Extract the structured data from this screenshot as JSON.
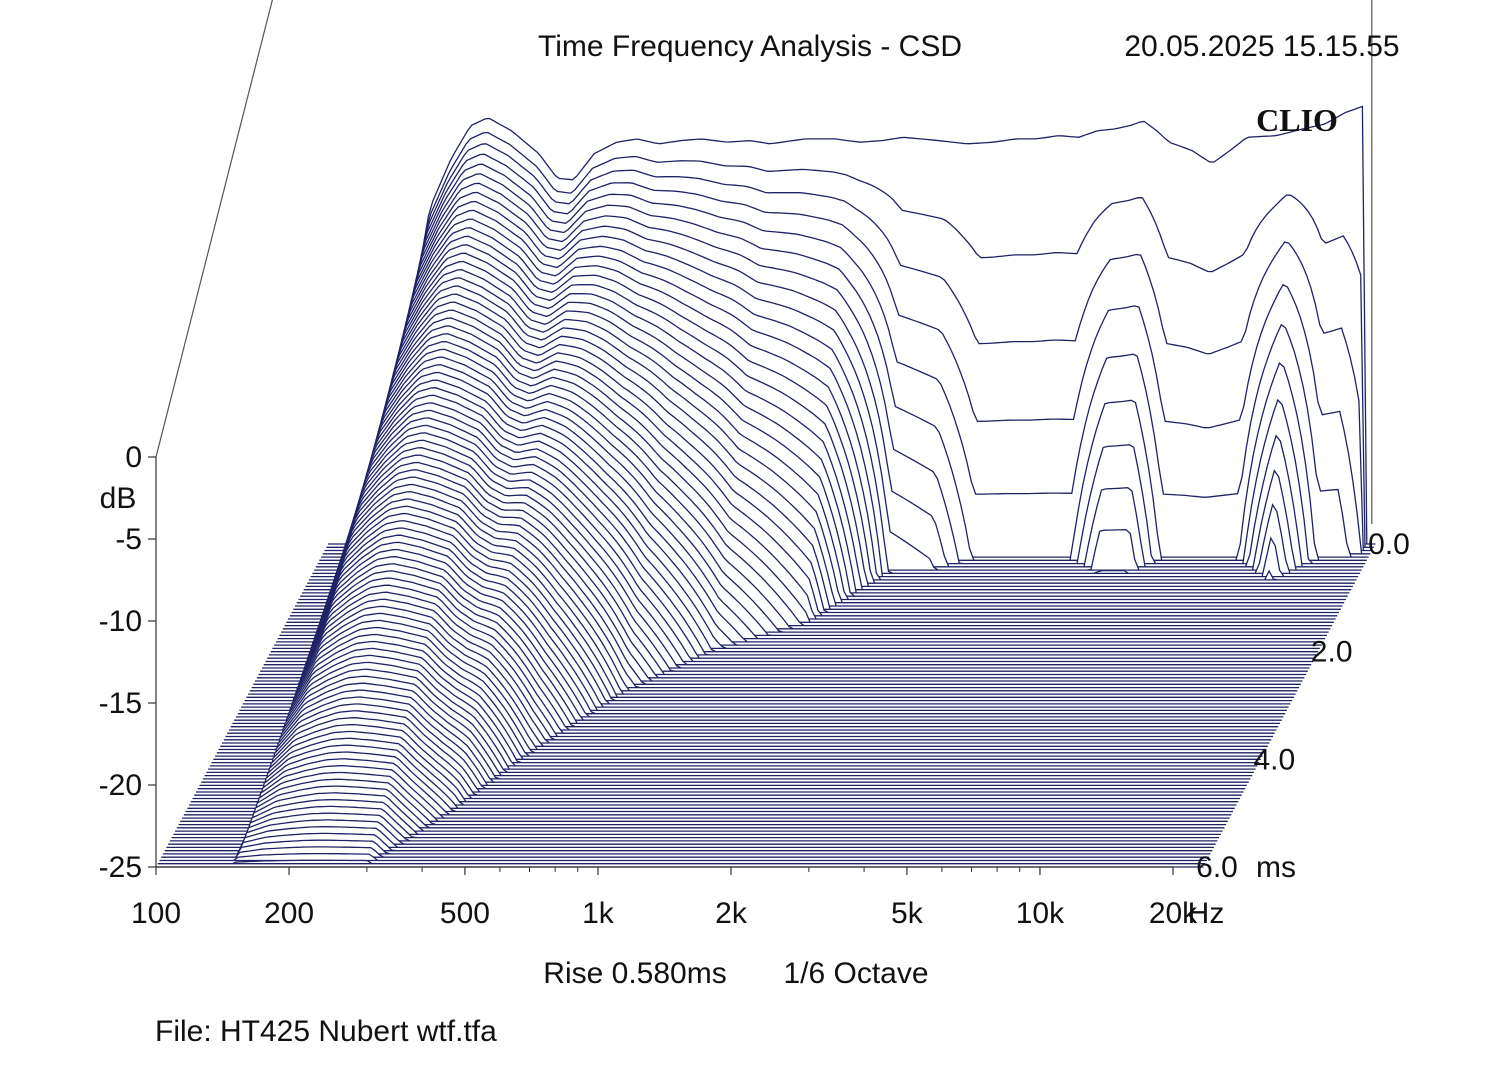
{
  "header": {
    "title": "Time Frequency Analysis - CSD",
    "datetime": "20.05.2025 15.15.55",
    "brand": "CLIO"
  },
  "footer": {
    "rise": "Rise 0.580ms",
    "smoothing": "1/6 Octave",
    "file": "File: HT425 Nubert wtf.tfa"
  },
  "colors": {
    "line": "#1f2366",
    "background": "#ffffff",
    "text": "#111111"
  },
  "chart_data": {
    "type": "waterfall",
    "title": "Time Frequency Analysis - CSD",
    "xlabel": "Hz",
    "ylabel": "dB",
    "zlabel": "ms",
    "x_scale": "log",
    "xlim": [
      100,
      20000
    ],
    "ylim": [
      -25,
      0
    ],
    "zlim": [
      0,
      6
    ],
    "x_ticks": [
      100,
      200,
      500,
      1000,
      2000,
      5000,
      10000,
      20000
    ],
    "x_tick_labels": [
      "100",
      "200",
      "500",
      "1k",
      "2k",
      "5k",
      "10k",
      "20k"
    ],
    "y_ticks": [
      0,
      -5,
      -10,
      -15,
      -20,
      -25
    ],
    "y_tick_labels": [
      "0",
      "-5",
      "-10",
      "-15",
      "-20",
      "-25"
    ],
    "z_ticks": [
      0,
      2,
      4,
      6
    ],
    "z_tick_labels": [
      "0.0",
      "2.0",
      "4.0",
      "6.0"
    ],
    "slice_count": 100,
    "front_response": {
      "freq_hz": [
        150,
        170,
        190,
        210,
        230,
        260,
        300,
        330,
        360,
        400,
        450,
        500,
        560,
        630,
        700,
        800,
        900,
        1000,
        1200,
        1400,
        1600,
        1800,
        2000,
        2400,
        2800,
        3200,
        3600,
        4000,
        4500,
        5000,
        5500,
        6000,
        6500,
        7000,
        7500,
        8000,
        9000,
        10000,
        11000,
        12000,
        14000,
        16000,
        18000,
        20000,
        22000
      ],
      "level_db": [
        -13.0,
        -4.5,
        -1.5,
        0.5,
        1.0,
        0.2,
        -1.2,
        -2.7,
        -2.8,
        -1.2,
        -0.5,
        -0.3,
        -0.6,
        -0.4,
        -0.3,
        -0.5,
        -0.4,
        -0.6,
        -0.3,
        -0.3,
        -0.5,
        -0.4,
        -0.2,
        -0.4,
        -0.6,
        -0.5,
        -0.3,
        -0.3,
        -0.1,
        -0.2,
        0.2,
        0.3,
        0.5,
        0.8,
        0.2,
        -0.5,
        -1.0,
        -1.8,
        -1.0,
        -0.2,
        -0.1,
        0.3,
        0.6,
        1.3,
        1.7
      ]
    },
    "decay_time_ms_to_floor": {
      "freq_hz": [
        150,
        200,
        300,
        400,
        500,
        700,
        1000,
        1500,
        2000,
        2500,
        3000,
        4000,
        5000,
        6000,
        7000,
        8000,
        10000,
        12000,
        15000,
        18000,
        20000,
        22000
      ],
      "time_ms": [
        6.0,
        6.0,
        6.0,
        5.0,
        4.0,
        2.8,
        2.0,
        1.5,
        0.55,
        0.5,
        0.3,
        0.3,
        0.3,
        0.55,
        0.55,
        0.3,
        0.3,
        0.3,
        0.7,
        0.3,
        0.3,
        0.2
      ]
    }
  }
}
